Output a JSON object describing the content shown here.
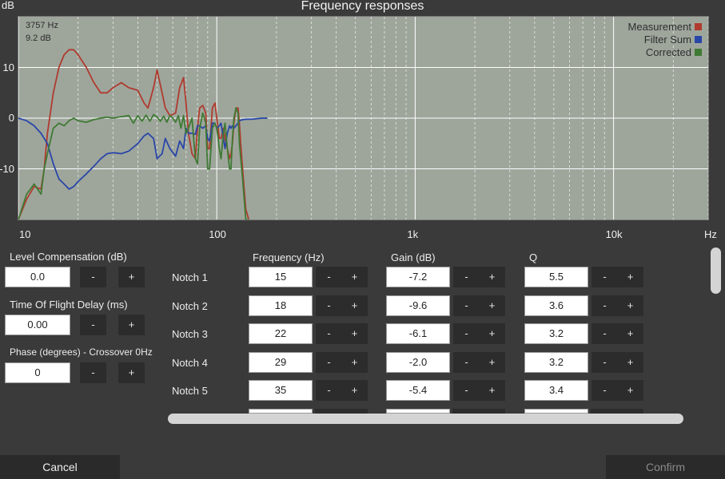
{
  "title": "Frequency responses",
  "chart_data": {
    "type": "line",
    "y_unit": "dB",
    "x_unit": "Hz",
    "x_scale": "log",
    "xlim": [
      10,
      30000
    ],
    "ylim": [
      -20,
      20
    ],
    "yticks": [
      {
        "v": 10,
        "label": "10"
      },
      {
        "v": 0,
        "label": "0"
      },
      {
        "v": -10,
        "label": "-10"
      }
    ],
    "xticks": [
      {
        "v": 10,
        "label": "10"
      },
      {
        "v": 100,
        "label": "100"
      },
      {
        "v": 1000,
        "label": "1k"
      },
      {
        "v": 10000,
        "label": "10k"
      }
    ],
    "readout": [
      "3757 Hz",
      "9.2 dB"
    ],
    "legend_position": "top-right",
    "series": [
      {
        "name": "Measurement",
        "color": "#b03a2e",
        "x": [
          10,
          11,
          12,
          13,
          13.5,
          14,
          15,
          16,
          17,
          18,
          19,
          20,
          22,
          24,
          26,
          28,
          30,
          33,
          36,
          40,
          43,
          45,
          48,
          50,
          53,
          55,
          58,
          62,
          65,
          68,
          70,
          72,
          75,
          78,
          80,
          82,
          85,
          88,
          90,
          92,
          95,
          98,
          100,
          103,
          105,
          108,
          110,
          113,
          116,
          118,
          120,
          122,
          125,
          128,
          130,
          132,
          135,
          140,
          145
        ],
        "y": [
          -20,
          -16,
          -13.5,
          -14,
          -10,
          -3,
          5,
          10,
          12.5,
          13.5,
          13.5,
          12.5,
          10,
          7,
          5,
          5,
          6,
          7,
          6,
          5.5,
          3,
          2,
          6,
          9.5,
          5,
          2,
          0.5,
          1,
          6,
          8,
          3,
          -3,
          -7,
          -8,
          -2,
          2,
          2.5,
          1,
          -6,
          -6,
          2,
          3,
          0,
          -4,
          -4,
          -2,
          -4,
          -6,
          -8,
          -7,
          -5,
          -1,
          2,
          2,
          -1,
          -5,
          -10,
          -18,
          -20
        ]
      },
      {
        "name": "Filter Sum",
        "color": "#2946a8",
        "x": [
          10,
          11,
          12,
          13,
          14,
          15,
          16,
          17,
          18,
          19,
          20,
          22,
          24,
          26,
          28,
          30,
          33,
          36,
          40,
          43,
          45,
          48,
          50,
          53,
          55,
          58,
          62,
          65,
          68,
          70,
          72,
          75,
          78,
          80,
          82,
          85,
          88,
          90,
          92,
          95,
          98,
          100,
          103,
          105,
          108,
          110,
          113,
          116,
          118,
          120,
          122,
          125,
          128,
          130,
          135,
          140,
          150,
          160,
          170,
          180
        ],
        "y": [
          0,
          -0.5,
          -1.5,
          -3,
          -5,
          -9,
          -12,
          -13,
          -14,
          -13.5,
          -12.5,
          -11,
          -9.5,
          -8,
          -7,
          -6.8,
          -7,
          -6.5,
          -5,
          -3.5,
          -3,
          -4,
          -8,
          -7,
          -4,
          -6,
          -7.5,
          -4.5,
          -6,
          -2,
          -3,
          -3,
          -3.2,
          -1.5,
          -1.5,
          -2,
          -1.5,
          -4,
          -4.5,
          -1,
          -1,
          -2,
          -1.5,
          -1,
          -4,
          -6,
          -3,
          -1.5,
          -2,
          -1.5,
          -2,
          -1.5,
          -1,
          -0.5,
          -0.3,
          -0.2,
          -0.2,
          -0.1,
          0,
          0
        ]
      },
      {
        "name": "Corrected",
        "color": "#3f7a34",
        "x": [
          10,
          11,
          12,
          13,
          13.5,
          14,
          15,
          16,
          17,
          18,
          19,
          20,
          22,
          24,
          26,
          28,
          30,
          33,
          36,
          38,
          40,
          42,
          44,
          46,
          48,
          50,
          52,
          54,
          56,
          58,
          60,
          62,
          64,
          66,
          68,
          70,
          72,
          75,
          78,
          80,
          82,
          85,
          88,
          90,
          92,
          95,
          98,
          100,
          103,
          105,
          108,
          110,
          113,
          116,
          118,
          120,
          122,
          125,
          128,
          130,
          135,
          140,
          145
        ],
        "y": [
          -20,
          -15,
          -13,
          -15,
          -10,
          -7,
          -2,
          -1,
          -1.5,
          -0.5,
          0,
          -0.5,
          -0.8,
          -0.3,
          0,
          0.2,
          0,
          0.3,
          0.5,
          -1,
          0.5,
          -0.6,
          0.6,
          -0.6,
          0.7,
          0.2,
          -0.6,
          0.4,
          -0.8,
          0.5,
          0,
          -0.8,
          0.5,
          -2,
          0.5,
          -3,
          -2,
          0,
          -8,
          -9,
          -2,
          1,
          -1,
          -10,
          -10,
          -2,
          -1,
          -2,
          -6,
          -8,
          -3,
          -1,
          -6,
          -10,
          -10,
          -4,
          0,
          2,
          1,
          -5,
          -12,
          -20,
          -20
        ]
      }
    ]
  },
  "left_controls": [
    {
      "label": "Level Compensation (dB)",
      "value": "0.0",
      "minus": "-",
      "plus": "+"
    },
    {
      "label": "Time Of Flight Delay (ms)",
      "value": "0.00",
      "minus": "-",
      "plus": "+"
    },
    {
      "label": "Phase (degrees) - Crossover 0Hz",
      "value": "0",
      "minus": "-",
      "plus": "+"
    }
  ],
  "notch_headers": {
    "frequency": "Frequency (Hz)",
    "gain": "Gain (dB)",
    "q": "Q"
  },
  "notches": [
    {
      "label": "Notch 1",
      "frequency": "15",
      "gain": "-7.2",
      "q": "5.5"
    },
    {
      "label": "Notch 2",
      "frequency": "18",
      "gain": "-9.6",
      "q": "3.6"
    },
    {
      "label": "Notch 3",
      "frequency": "22",
      "gain": "-6.1",
      "q": "3.2"
    },
    {
      "label": "Notch 4",
      "frequency": "29",
      "gain": "-2.0",
      "q": "3.2"
    },
    {
      "label": "Notch 5",
      "frequency": "35",
      "gain": "-5.4",
      "q": "3.4"
    }
  ],
  "stepper": {
    "minus": "-",
    "plus": "+"
  },
  "footer": {
    "cancel": "Cancel",
    "confirm": "Confirm"
  },
  "colors": {
    "plot_bg": "#9ea69c",
    "panel_bg": "#3a3a3a",
    "confirm_disabled_text": "#8a8a8a"
  }
}
